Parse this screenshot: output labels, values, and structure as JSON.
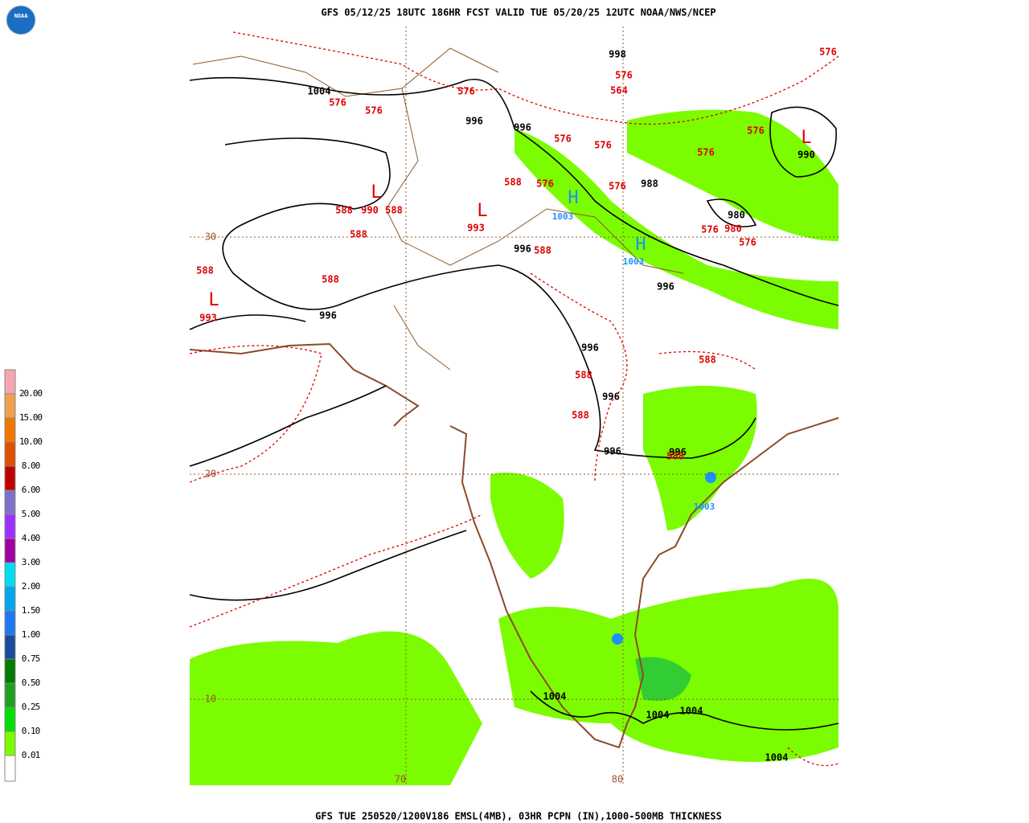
{
  "header": {
    "title": "GFS 05/12/25 18UTC 186HR FCST VALID TUE 05/20/25 12UTC NOAA/NWS/NCEP",
    "logo": "NOAA"
  },
  "footer": {
    "caption": "GFS TUE 250520/1200V186 EMSL(4MB), 03HR PCPN (IN),1000-500MB THICKNESS"
  },
  "legend": {
    "labels": [
      "20.00",
      "15.00",
      "10.00",
      "8.00",
      "6.00",
      "5.00",
      "4.00",
      "3.00",
      "2.00",
      "1.50",
      "1.00",
      "0.75",
      "0.50",
      "0.25",
      "0.10",
      "0.01"
    ]
  },
  "map": {
    "grid_labels": [
      "30",
      "20",
      "10",
      "70",
      "80"
    ],
    "isobar_labels": [
      "998",
      "1004",
      "996",
      "996",
      "990",
      "988",
      "980",
      "996",
      "996",
      "996",
      "996",
      "996",
      "996",
      "996",
      "1004",
      "1004",
      "1004",
      "1004"
    ],
    "thickness_labels": [
      "576",
      "576",
      "576",
      "576",
      "576",
      "564",
      "576",
      "576",
      "576",
      "576",
      "588",
      "576",
      "576",
      "588",
      "588",
      "990",
      "588",
      "993",
      "588",
      "588",
      "588",
      "993",
      "576",
      "980",
      "576",
      "588",
      "588",
      "588",
      "588"
    ],
    "low_markers": [
      "L",
      "L",
      "L",
      "L"
    ],
    "high_markers": [
      "H",
      "H"
    ],
    "high_values": [
      "1003",
      "1003",
      "1003"
    ]
  }
}
